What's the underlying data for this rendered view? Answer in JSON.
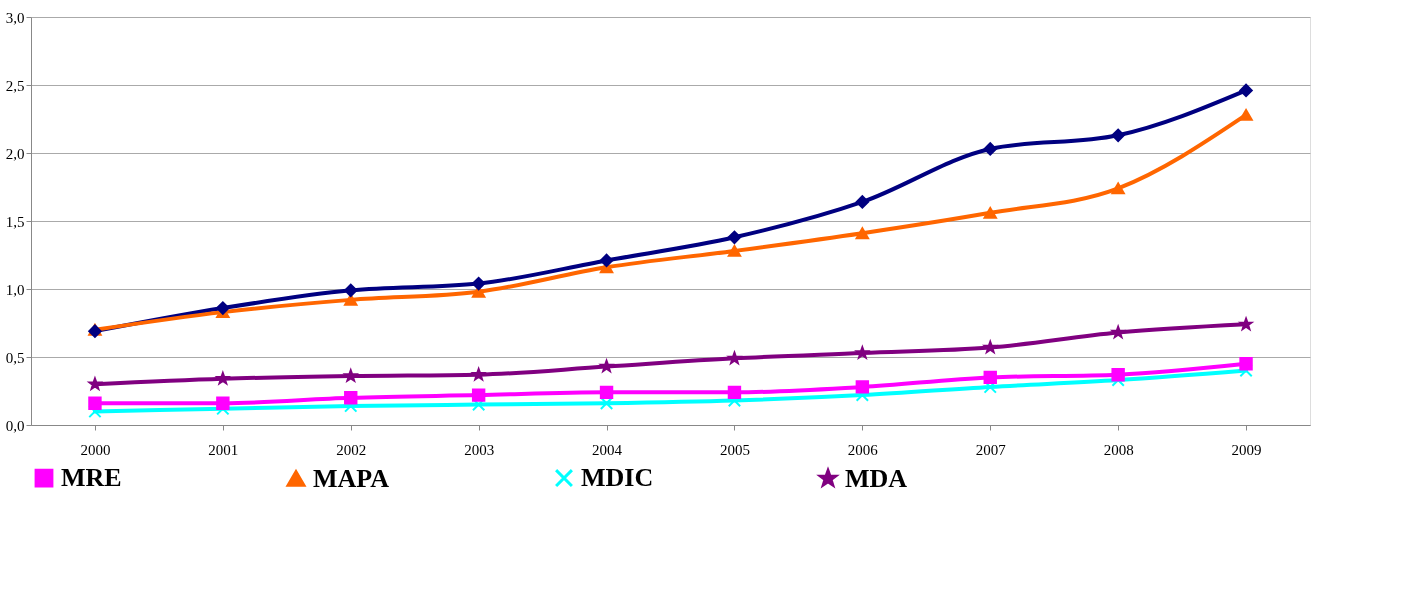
{
  "chart_data": {
    "type": "line",
    "categories": [
      "2000",
      "2001",
      "2002",
      "2003",
      "2004",
      "2005",
      "2006",
      "2007",
      "2008",
      "2009"
    ],
    "series": [
      {
        "color": "#000080",
        "marker": "diamond",
        "values": [
          0.69,
          0.86,
          0.99,
          1.04,
          1.21,
          1.38,
          1.64,
          2.03,
          2.13,
          2.46
        ]
      },
      {
        "name": "MRE",
        "color": "#ff00ff",
        "marker": "square",
        "values": [
          0.16,
          0.16,
          0.2,
          0.22,
          0.24,
          0.24,
          0.28,
          0.35,
          0.37,
          0.45
        ]
      },
      {
        "name": "MAPA",
        "color": "#ff6600",
        "marker": "triangle",
        "values": [
          0.7,
          0.83,
          0.92,
          0.98,
          1.16,
          1.28,
          1.41,
          1.56,
          1.74,
          2.28
        ]
      },
      {
        "name": "MDIC",
        "color": "#00ffff",
        "marker": "cross",
        "values": [
          0.1,
          0.12,
          0.14,
          0.15,
          0.16,
          0.18,
          0.22,
          0.28,
          0.33,
          0.4
        ]
      },
      {
        "name": "MDA",
        "color": "#800080",
        "marker": "star",
        "values": [
          0.3,
          0.34,
          0.36,
          0.37,
          0.43,
          0.49,
          0.53,
          0.57,
          0.68,
          0.74
        ]
      }
    ],
    "ylim": [
      0,
      3
    ],
    "yticks": [
      {
        "value": 0,
        "label": "0,0"
      },
      {
        "value": 0.5,
        "label": "0,5"
      },
      {
        "value": 1,
        "label": "1,0"
      },
      {
        "value": 1.5,
        "label": "1,5"
      },
      {
        "value": 2,
        "label": "2,0"
      },
      {
        "value": 2.5,
        "label": "2,5"
      },
      {
        "value": 3,
        "label": "3,0"
      }
    ],
    "grid": "y",
    "legend": "bottom",
    "line_style": "solid"
  }
}
